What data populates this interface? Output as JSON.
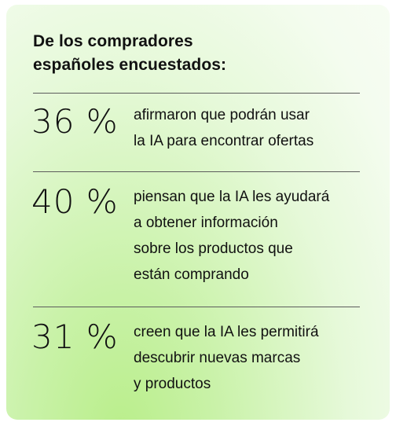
{
  "heading": {
    "line1": "De los compradores",
    "line2": "españoles encuestados:"
  },
  "stats": [
    {
      "value": "36 %",
      "lines": [
        "afirmaron que podrán usar",
        "la IA para encontrar ofertas"
      ]
    },
    {
      "value": "40 %",
      "lines": [
        "piensan que la IA les ayudará",
        "a obtener información",
        "sobre los productos que",
        "están comprando"
      ]
    },
    {
      "value": "31 %",
      "lines": [
        "creen que la IA les permitirá",
        "descubrir nuevas marcas",
        "y productos"
      ]
    }
  ],
  "colors": {
    "text": "#111111",
    "divider": "#5c5c5c",
    "gradient_light": "#f7fdf3",
    "gradient_green": "#b9ee8a"
  }
}
